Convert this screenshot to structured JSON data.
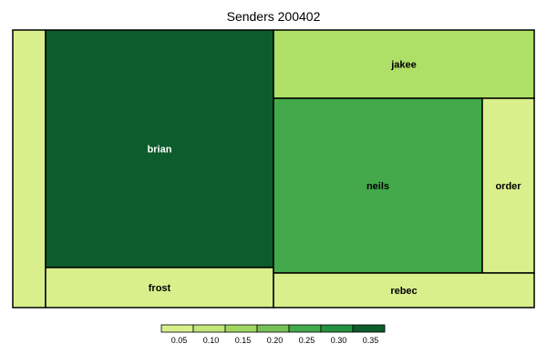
{
  "chart_data": {
    "type": "heatmap",
    "title": "Senders 200402",
    "cells": [
      {
        "label": "",
        "value": 0.05,
        "color": "#d9ef8b"
      },
      {
        "label": "brian",
        "value": 0.38,
        "color": "#0d5c2c"
      },
      {
        "label": "frost",
        "value": 0.05,
        "color": "#d9ef8b"
      },
      {
        "label": "jakee",
        "value": 0.1,
        "color": "#aedf67"
      },
      {
        "label": "neils",
        "value": 0.25,
        "color": "#43a94b"
      },
      {
        "label": "order",
        "value": 0.05,
        "color": "#d9ef8b"
      },
      {
        "label": "rebec",
        "value": 0.05,
        "color": "#d9ef8b"
      }
    ],
    "legend": {
      "position": "bottom",
      "ticks": [
        "0.05",
        "0.10",
        "0.15",
        "0.20",
        "0.25",
        "0.30",
        "0.35"
      ],
      "colors": [
        "#d9ef8b",
        "#c1e67a",
        "#9fd562",
        "#76c157",
        "#43a94b",
        "#259142",
        "#0d5c2c"
      ]
    }
  }
}
